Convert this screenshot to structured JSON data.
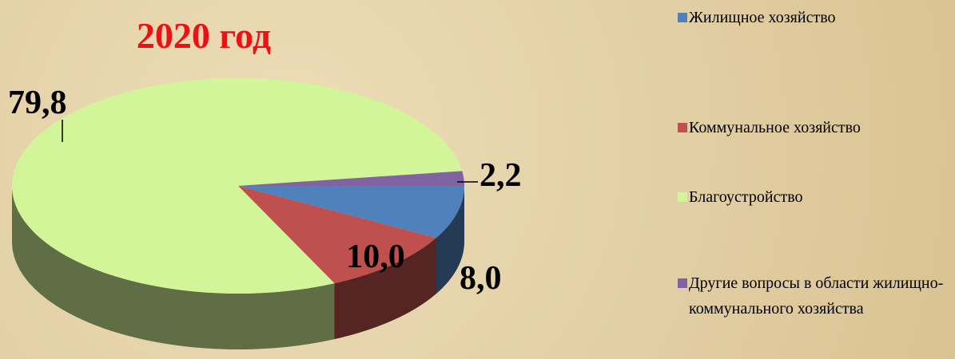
{
  "chart_data": {
    "type": "pie",
    "title": "2020 год",
    "categories": [
      "Жилищное хозяйство",
      "Коммунальное хозяйство",
      "Благоустройство",
      "Другие вопросы в области жилищно-коммунального хозяйства"
    ],
    "values": [
      8.0,
      10.0,
      79.8,
      2.2
    ],
    "value_labels": [
      "8,0",
      "10,0",
      "79,8",
      "2,2"
    ],
    "colors": [
      "#4f81bd",
      "#c0504d",
      "#d2f59a",
      "#8064a2"
    ],
    "legend": "right"
  }
}
